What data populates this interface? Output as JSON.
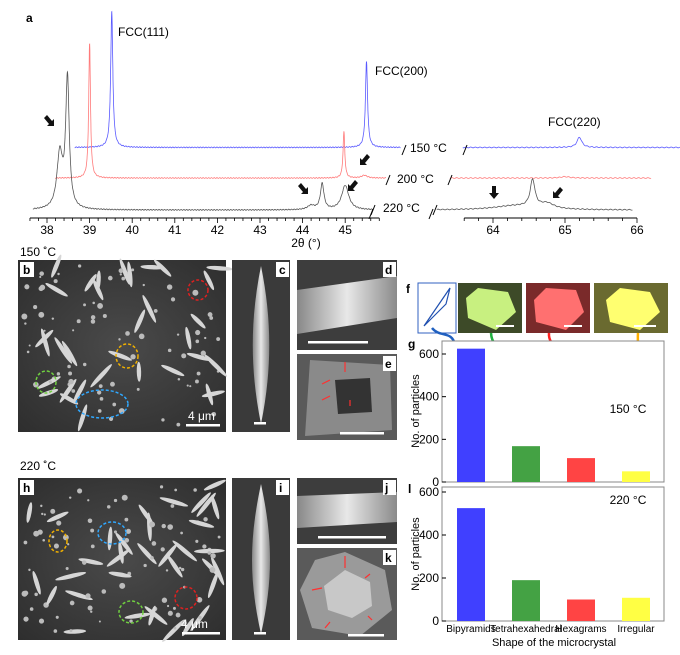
{
  "panel_labels": {
    "a": "a",
    "b": "b",
    "c": "c",
    "d": "d",
    "e": "e",
    "f": "f",
    "g": "g",
    "h": "h",
    "i": "i",
    "j": "j",
    "k": "k",
    "l": "l"
  },
  "section_labels": {
    "top": "150 ˚C",
    "bottom": "220 ˚C"
  },
  "scale_bars": {
    "b": "4 μm",
    "h": "4 μm"
  },
  "colors": {
    "t150": "#5a5aff",
    "t200": "#ff7a7a",
    "t220": "#555555",
    "bipyramids": "#4040ff",
    "tetrahexahedral": "#44a244",
    "hexagrams": "#ff4444",
    "irregular": "#ffff44",
    "orange": "#ffb000"
  },
  "chart_data": [
    {
      "type": "line",
      "panel": "a",
      "xlabel": "2θ (°)",
      "ylabel": "",
      "x_axis_segments": [
        {
          "range": [
            37.6,
            45.8
          ],
          "ticks": [
            38,
            39,
            40,
            41,
            42,
            43,
            44,
            45
          ]
        },
        {
          "range": [
            63.6,
            66.0
          ],
          "ticks": [
            64,
            65,
            66
          ]
        }
      ],
      "peak_labels": [
        "FCC(111)",
        "FCC(200)",
        "FCC(220)"
      ],
      "series": [
        {
          "name": "150 °C",
          "color": "#5a5aff",
          "offset": 46,
          "left_range": [
            38.65,
            46.3
          ],
          "right_range": [
            63.58,
            66.6
          ],
          "peaks": [
            {
              "x": 39.52,
              "h": 100,
              "w": 0.03
            },
            {
              "x": 45.5,
              "h": 63,
              "w": 0.03
            },
            {
              "x": 65.2,
              "h": 7.5,
              "w": 0.04
            }
          ]
        },
        {
          "name": "200 °C",
          "color": "#ff7a7a",
          "offset": 23.5,
          "left_range": [
            38.19,
            45.96
          ],
          "right_range": [
            63.4,
            66.2
          ],
          "peaks": [
            {
              "x": 39.0,
              "h": 99,
              "w": 0.025
            },
            {
              "x": 44.97,
              "h": 34,
              "w": 0.025
            },
            {
              "x": 45.45,
              "h": 2,
              "w": 0.08
            },
            {
              "x": 65.0,
              "h": 1,
              "w": 0.08
            }
          ]
        },
        {
          "name": "220 °C",
          "color": "#555555",
          "offset": 0,
          "left_range": [
            37.67,
            45.65
          ],
          "right_range": [
            63.22,
            65.94
          ],
          "peaks": [
            {
              "x": 38.48,
              "h": 95,
              "w": 0.05
            },
            {
              "x": 38.3,
              "h": 40,
              "w": 0.08
            },
            {
              "x": 44.46,
              "h": 19,
              "w": 0.05
            },
            {
              "x": 44.2,
              "h": 3,
              "w": 0.1
            },
            {
              "x": 45.0,
              "h": 18,
              "w": 0.1
            },
            {
              "x": 64.3,
              "h": 3,
              "w": 0.35
            },
            {
              "x": 64.55,
              "h": 20,
              "w": 0.04
            },
            {
              "x": 64.75,
              "h": 4,
              "w": 0.12
            }
          ]
        }
      ]
    },
    {
      "type": "bar",
      "panel": "g",
      "annotation": "150 °C",
      "ylabel": "No. of particles",
      "ylim": [
        0,
        660
      ],
      "yticks": [
        0,
        200,
        400,
        600
      ],
      "categories": [
        "Bipyramids",
        "Tetrahexahedral",
        "Hexagrams",
        "Irregular"
      ],
      "values": [
        625,
        168,
        112,
        50
      ],
      "colors": [
        "#4040ff",
        "#44a244",
        "#ff4444",
        "#ffff44"
      ]
    },
    {
      "type": "bar",
      "panel": "l",
      "annotation": "220 °C",
      "ylabel": "No. of particles",
      "xlabel": "Shape of the microcrystal",
      "ylim": [
        0,
        620
      ],
      "yticks": [
        0,
        200,
        400,
        600
      ],
      "categories": [
        "Bipyramids",
        "Tetrahexahedral",
        "Hexagrams",
        "Irregular"
      ],
      "values": [
        525,
        190,
        100,
        108
      ],
      "colors": [
        "#4040ff",
        "#44a244",
        "#ff4444",
        "#ffff44"
      ]
    }
  ]
}
